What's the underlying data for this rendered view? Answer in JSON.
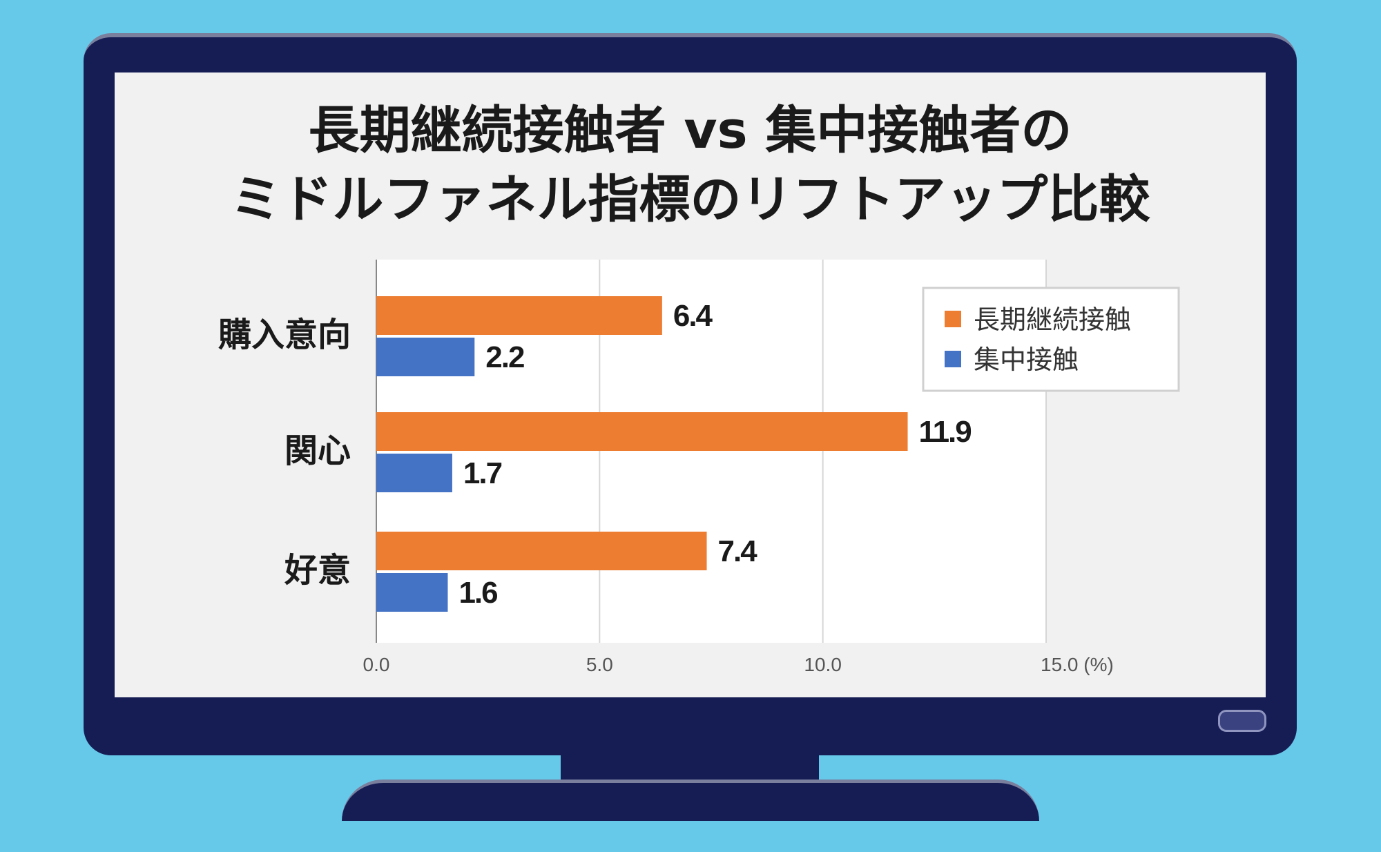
{
  "chart_data": {
    "type": "bar",
    "orientation": "horizontal",
    "title_lines": [
      "長期継続接触者 vs 集中接触者の",
      "ミドルファネル指標のリフトアップ比較"
    ],
    "categories": [
      "購入意向",
      "関心",
      "好意"
    ],
    "series": [
      {
        "name": "長期継続接触",
        "color": "#ed7d31",
        "values": [
          6.4,
          11.9,
          7.4
        ],
        "labels": [
          "6.4",
          "11.9",
          "7.4"
        ]
      },
      {
        "name": "集中接触",
        "color": "#4472c4",
        "values": [
          2.2,
          1.7,
          1.6
        ],
        "labels": [
          "2.2",
          "1.7",
          "1.6"
        ]
      }
    ],
    "xlim": [
      0,
      15
    ],
    "xticks": [
      0,
      5,
      10,
      15
    ],
    "xtick_labels": [
      "0.0",
      "5.0",
      "10.0",
      "15.0 (%)"
    ],
    "grid": true,
    "legend": "top-right"
  },
  "colors": {
    "background": "#67c9ea",
    "bezel": "#161d55",
    "screen": "#f1f1f1"
  }
}
